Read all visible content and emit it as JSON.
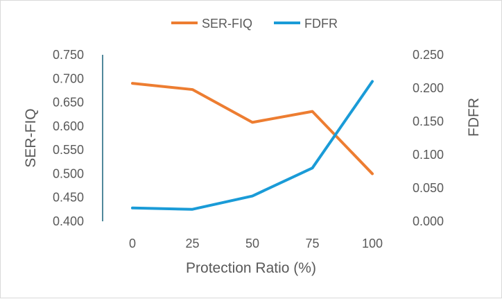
{
  "chart_data": {
    "type": "line",
    "categories": [
      "0",
      "25",
      "50",
      "75",
      "100"
    ],
    "xlabel": "Protection Ratio (%)",
    "y_left": {
      "label": "SER-FIQ",
      "ylim": [
        0.4,
        0.75
      ],
      "ticks": [
        "0.400",
        "0.450",
        "0.500",
        "0.550",
        "0.600",
        "0.650",
        "0.700",
        "0.750"
      ]
    },
    "y_right": {
      "label": "FDFR",
      "ylim": [
        0.0,
        0.25
      ],
      "ticks": [
        "0.000",
        "0.050",
        "0.100",
        "0.150",
        "0.200",
        "0.250"
      ]
    },
    "series": [
      {
        "name": "SER-FIQ",
        "axis": "left",
        "color": "#ED7D31",
        "values": [
          0.69,
          0.677,
          0.608,
          0.631,
          0.5
        ]
      },
      {
        "name": "FDFR",
        "axis": "right",
        "color": "#1A9BD7",
        "values": [
          0.02,
          0.018,
          0.038,
          0.08,
          0.21
        ]
      }
    ],
    "legend_position": "top-center",
    "grid": false
  }
}
